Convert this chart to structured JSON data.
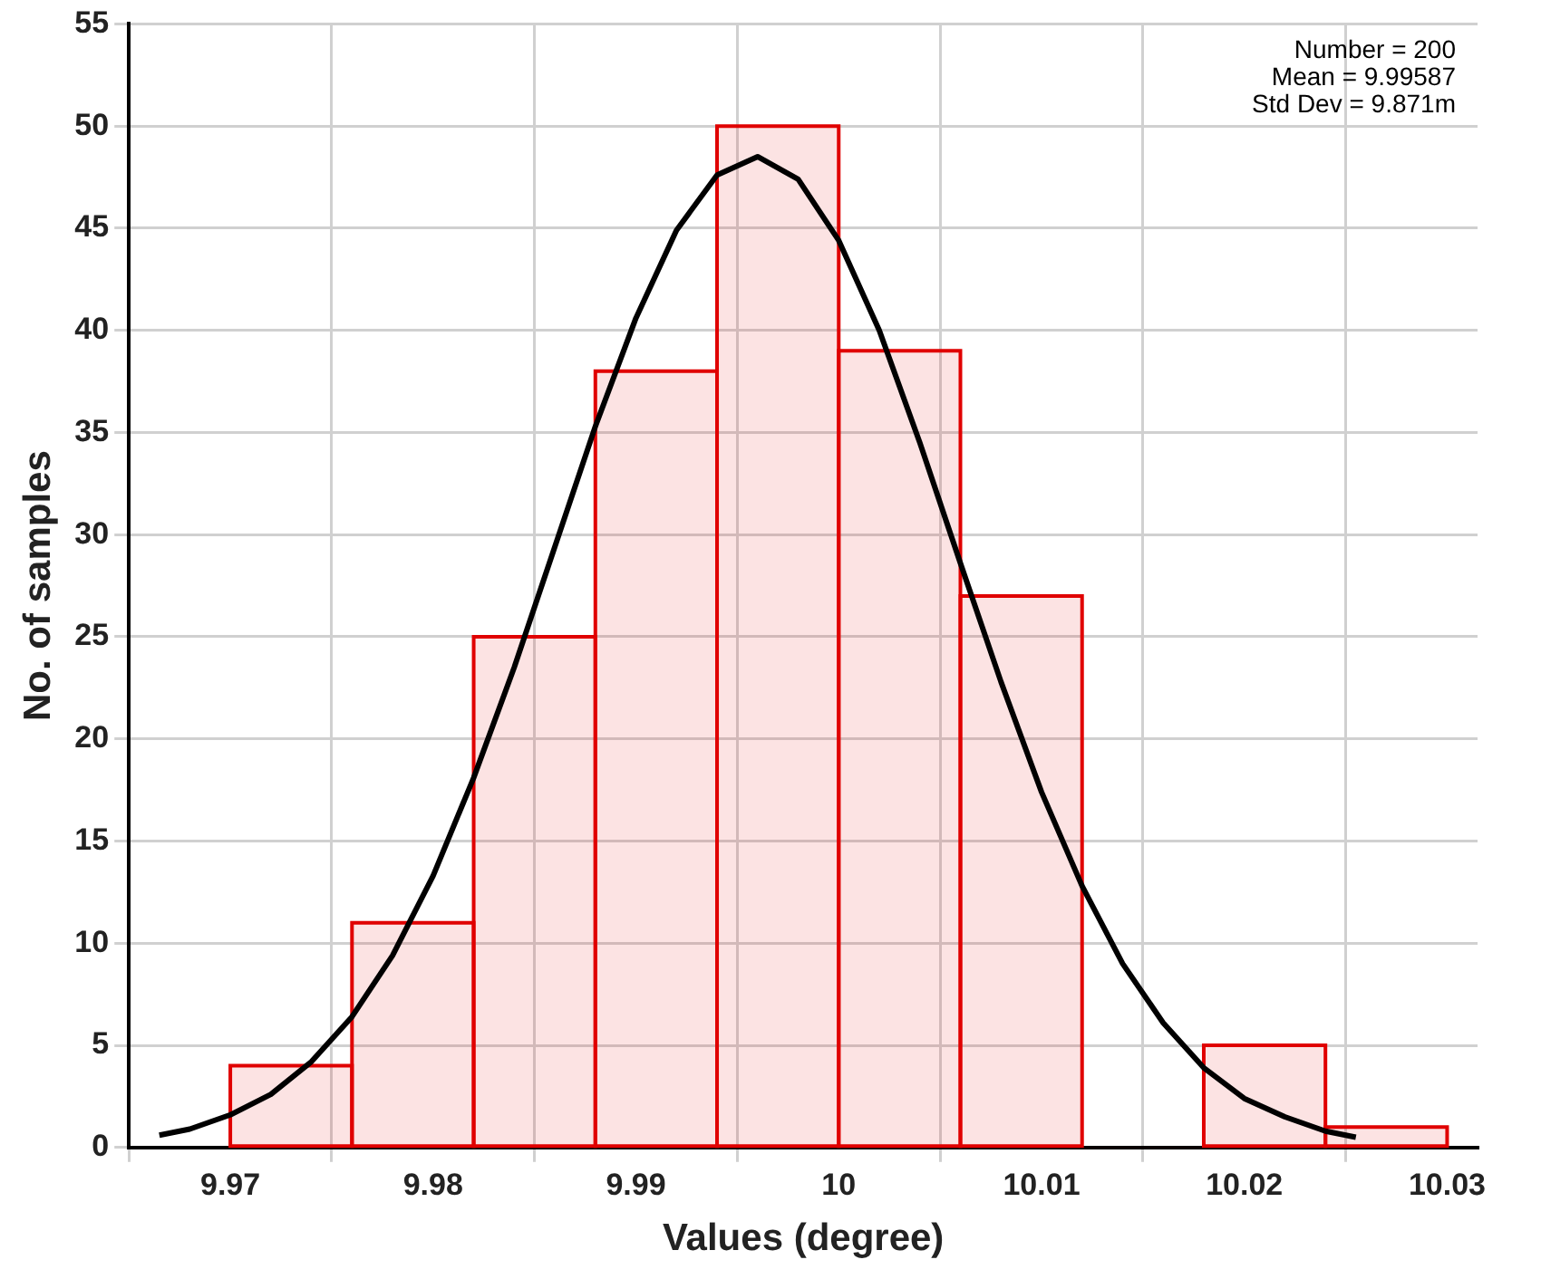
{
  "chart_data": {
    "type": "histogram",
    "xlabel": "Values (degree)",
    "ylabel": "No. of samples",
    "bins": [
      9.97,
      9.976,
      9.982,
      9.988,
      9.994,
      10.0,
      10.006,
      10.012,
      10.018,
      10.024,
      10.03
    ],
    "color": "#e00000",
    "values": [
      4,
      11,
      25,
      38,
      50,
      39,
      27,
      0,
      5,
      1
    ],
    "series": [
      {
        "type": "line",
        "color": "#000000",
        "x": [
          9.9665,
          9.968,
          9.97,
          9.972,
          9.974,
          9.976,
          9.978,
          9.98,
          9.982,
          9.984,
          9.986,
          9.988,
          9.99,
          9.992,
          9.994,
          9.996,
          9.998,
          10.0,
          10.002,
          10.004,
          10.006,
          10.008,
          10.01,
          10.012,
          10.014,
          10.016,
          10.018,
          10.02,
          10.022,
          10.024,
          10.0255
        ],
        "values": [
          0.6,
          0.9,
          1.6,
          2.6,
          4.2,
          6.4,
          9.4,
          13.3,
          18.1,
          23.5,
          29.4,
          35.3,
          40.6,
          44.9,
          47.6,
          48.5,
          47.4,
          44.4,
          40.0,
          34.5,
          28.6,
          22.8,
          17.4,
          12.8,
          9.0,
          6.1,
          3.9,
          2.4,
          1.5,
          0.8,
          0.5
        ]
      }
    ],
    "xlim": [
      9.965,
      10.0315
    ],
    "xticks": [
      9.97,
      9.98,
      9.99,
      10,
      10.01,
      10.02,
      10.03
    ],
    "ylim": [
      0,
      55
    ],
    "yticks": [
      0,
      5,
      10,
      15,
      20,
      25,
      30,
      35,
      40,
      45,
      50,
      55
    ],
    "grid": true,
    "legend": false,
    "marker": "none",
    "line_style": "solid",
    "annotations": [
      "Number = 200",
      "Mean = 9.99587",
      "Std Dev = 9.871m"
    ]
  }
}
